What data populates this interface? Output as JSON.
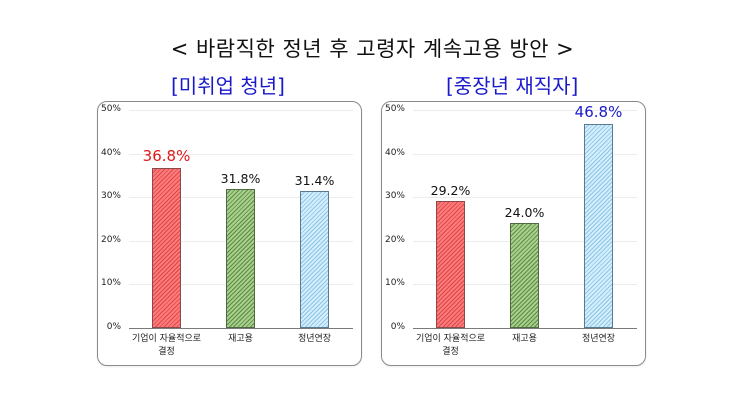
{
  "title": "< 바람직한 정년 후 고령자 계속고용 방안 >",
  "colors": {
    "red_bar": "#ff7b7b",
    "green_bar": "#a7d08c",
    "blue_bar": "#d3eefc",
    "highlight_red": "#e01919",
    "highlight_blue": "#1a1acc",
    "subtitle": "#1a1acc"
  },
  "chart_data": [
    {
      "type": "bar",
      "title": "[미취업 청년]",
      "categories": [
        "기업이 자율적으로 결정",
        "재고용",
        "정년연장"
      ],
      "values": [
        36.8,
        31.8,
        31.4
      ],
      "value_labels": [
        "36.8%",
        "31.8%",
        "31.4%"
      ],
      "highlight_index": 0,
      "xlabel": "",
      "ylabel": "",
      "ylim": [
        0,
        50
      ],
      "yticks": [
        "0%",
        "10%",
        "20%",
        "30%",
        "40%",
        "50%"
      ],
      "grid": true,
      "legend": null
    },
    {
      "type": "bar",
      "title": "[중장년 재직자]",
      "categories": [
        "기업이 자율적으로 결정",
        "재고용",
        "정년연장"
      ],
      "values": [
        29.2,
        24.0,
        46.8
      ],
      "value_labels": [
        "29.2%",
        "24.0%",
        "46.8%"
      ],
      "highlight_index": 2,
      "xlabel": "",
      "ylabel": "",
      "ylim": [
        0,
        50
      ],
      "yticks": [
        "0%",
        "10%",
        "20%",
        "30%",
        "40%",
        "50%"
      ],
      "grid": true,
      "legend": null
    }
  ],
  "cat_lines": {
    "c0_line1": "기업이 자율적으로",
    "c0_line2": "결정",
    "c1": "재고용",
    "c2": "정년연장"
  }
}
